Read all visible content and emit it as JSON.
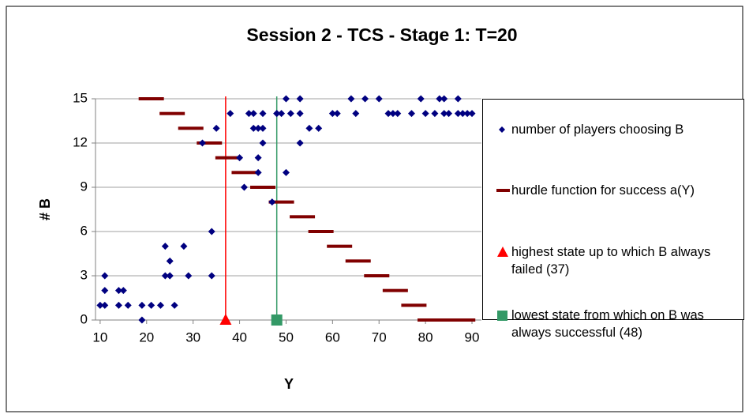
{
  "chart_data": {
    "type": "scatter",
    "title": "Session 2 - TCS - Stage 1: T=20",
    "xlabel": "Y",
    "ylabel": "# B",
    "xlim": [
      9,
      92
    ],
    "ylim": [
      0,
      15
    ],
    "xticks": [
      10,
      20,
      30,
      40,
      50,
      60,
      70,
      80,
      90
    ],
    "yticks": [
      0,
      3,
      6,
      9,
      12,
      15
    ],
    "grid": true,
    "legend": "right",
    "series": [
      {
        "name": "number of players choosing B",
        "color": "#000080",
        "marker": "diamond",
        "x": [
          10,
          11,
          11,
          11,
          14,
          14,
          15,
          16,
          19,
          19,
          21,
          23,
          24,
          24,
          25,
          25,
          25,
          26,
          28,
          29,
          32,
          34,
          34,
          35,
          38,
          40,
          41,
          42,
          43,
          43,
          44,
          44,
          44,
          45,
          45,
          45,
          47,
          48,
          48,
          49,
          50,
          50,
          51,
          53,
          53,
          53,
          55,
          57,
          60,
          61,
          64,
          65,
          67,
          70,
          72,
          73,
          74,
          77,
          79,
          80,
          82,
          83,
          84,
          84,
          85,
          87,
          87,
          88,
          89,
          90
        ],
        "values": [
          1,
          1,
          2,
          3,
          2,
          1,
          2,
          1,
          1,
          0,
          1,
          1,
          5,
          3,
          4,
          3,
          3,
          1,
          5,
          3,
          12,
          3,
          6,
          13,
          14,
          11,
          9,
          14,
          14,
          13,
          13,
          11,
          10,
          12,
          13,
          14,
          8,
          14,
          14,
          14,
          15,
          10,
          14,
          15,
          14,
          12,
          13,
          13,
          14,
          14,
          15,
          14,
          15,
          15,
          14,
          14,
          14,
          14,
          15,
          14,
          14,
          15,
          14,
          15,
          14,
          14,
          15,
          14,
          14,
          14
        ]
      },
      {
        "name": "hurdle function for success a(Y)",
        "color": "#800000",
        "marker": "dash",
        "x": [
          21,
          25.5,
          29.5,
          33.5,
          37.5,
          41,
          45,
          49,
          53.5,
          57.5,
          61.5,
          65.5,
          69.5,
          73.5,
          77.5,
          81,
          84,
          88
        ],
        "values": [
          15,
          14,
          13,
          12,
          11,
          10,
          9,
          8,
          7,
          6,
          5,
          4,
          3,
          2,
          1,
          0,
          0,
          0
        ]
      },
      {
        "name": "highest state up to which B always failed (37)",
        "color": "#ff0000",
        "marker": "triangle",
        "x": [
          37
        ],
        "values": [
          0
        ]
      },
      {
        "name": "lowest state from which on B was always successful (48)",
        "color": "#339966",
        "marker": "square",
        "x": [
          48
        ],
        "values": [
          0
        ]
      }
    ]
  }
}
